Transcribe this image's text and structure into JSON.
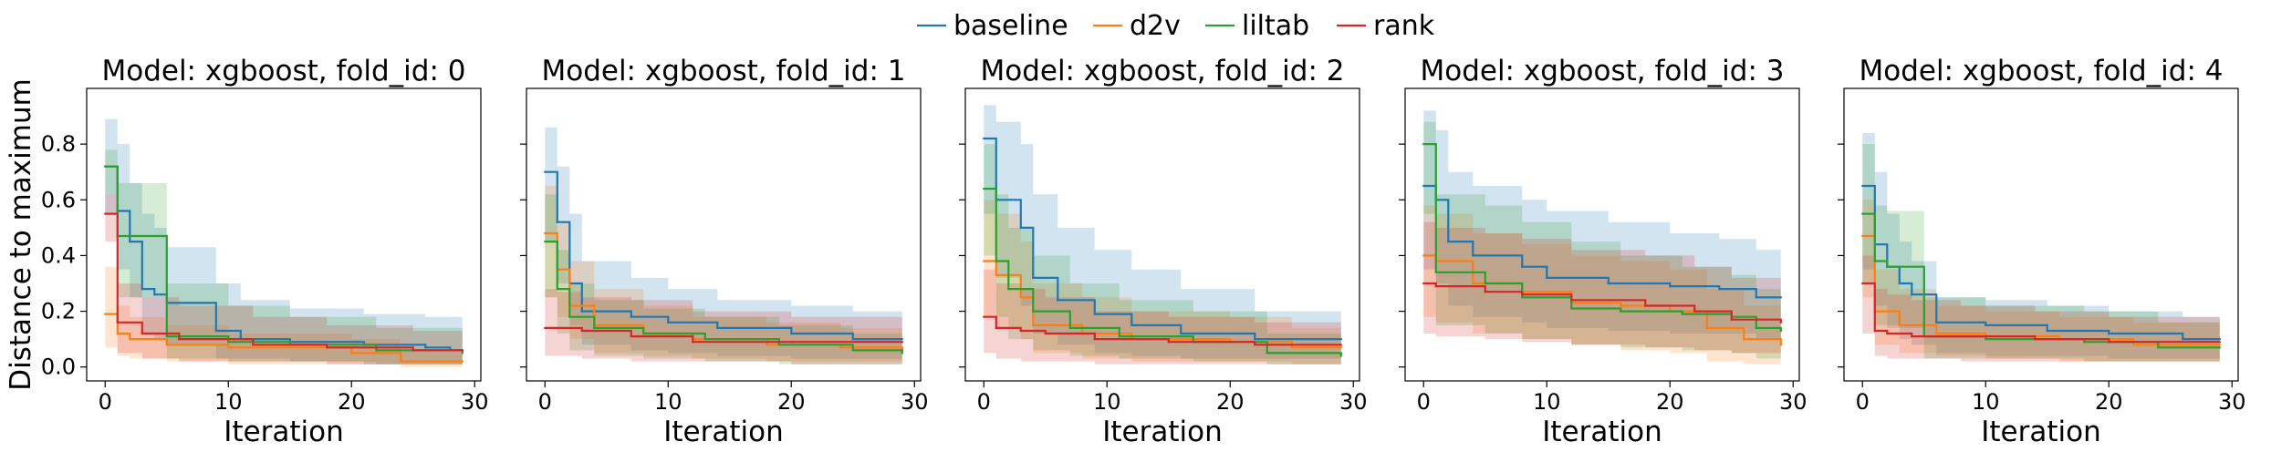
{
  "legend": {
    "placement": "top-center",
    "entries": [
      {
        "name": "baseline",
        "color": "#1f77b4"
      },
      {
        "name": "d2v",
        "color": "#ff7f0e"
      },
      {
        "name": "liltab",
        "color": "#2ca02c"
      },
      {
        "name": "rank",
        "color": "#d62728"
      }
    ]
  },
  "chart_data": [
    {
      "type": "line",
      "title": "Model: xgboost, fold_id: 0",
      "xlabel": "Iteration",
      "ylabel": "Distance to maximum",
      "xlim": [
        -1.5,
        30.5
      ],
      "ylim": [
        -0.05,
        1.0
      ],
      "xticks": [
        0,
        10,
        20,
        30
      ],
      "yticks": [
        0.0,
        0.2,
        0.4,
        0.6,
        0.8
      ],
      "ytick_labels": [
        "0.0",
        "0.2",
        "0.4",
        "0.6",
        "0.8"
      ],
      "grid": false,
      "series": [
        {
          "name": "baseline",
          "x": [
            0,
            1,
            2,
            3,
            4,
            5,
            9,
            11,
            15,
            21,
            26,
            28,
            29
          ],
          "y": [
            0.72,
            0.56,
            0.45,
            0.28,
            0.26,
            0.23,
            0.13,
            0.1,
            0.09,
            0.08,
            0.07,
            0.06,
            0.06
          ],
          "upper": [
            0.89,
            0.8,
            0.66,
            0.55,
            0.5,
            0.43,
            0.3,
            0.24,
            0.21,
            0.19,
            0.18,
            0.18,
            0.18
          ],
          "lower": [
            0.55,
            0.35,
            0.25,
            0.12,
            0.1,
            0.08,
            0.03,
            0.03,
            0.02,
            0.01,
            0.01,
            0.01,
            0.01
          ]
        },
        {
          "name": "d2v",
          "x": [
            0,
            1,
            2,
            5,
            10,
            20,
            24,
            29
          ],
          "y": [
            0.19,
            0.12,
            0.1,
            0.08,
            0.07,
            0.05,
            0.02,
            0.02
          ],
          "upper": [
            0.36,
            0.22,
            0.18,
            0.15,
            0.12,
            0.1,
            0.06,
            0.06
          ],
          "lower": [
            0.07,
            0.04,
            0.03,
            0.02,
            0.01,
            0.01,
            0.0,
            0.0
          ]
        },
        {
          "name": "liltab",
          "x": [
            0,
            1,
            5,
            10,
            15,
            22,
            29
          ],
          "y": [
            0.72,
            0.47,
            0.11,
            0.09,
            0.08,
            0.06,
            0.05
          ],
          "upper": [
            0.78,
            0.66,
            0.3,
            0.22,
            0.18,
            0.14,
            0.12
          ],
          "lower": [
            0.62,
            0.25,
            0.03,
            0.02,
            0.02,
            0.01,
            0.01
          ]
        },
        {
          "name": "rank",
          "x": [
            0,
            1,
            3,
            6,
            12,
            18,
            25,
            29
          ],
          "y": [
            0.55,
            0.16,
            0.12,
            0.1,
            0.08,
            0.07,
            0.06,
            0.06
          ],
          "upper": [
            0.62,
            0.3,
            0.25,
            0.22,
            0.18,
            0.15,
            0.13,
            0.13
          ],
          "lower": [
            0.45,
            0.05,
            0.03,
            0.02,
            0.02,
            0.01,
            0.01,
            0.01
          ]
        }
      ]
    },
    {
      "type": "line",
      "title": "Model: xgboost, fold_id: 1",
      "xlabel": "Iteration",
      "ylabel": "",
      "xlim": [
        -1.5,
        30.5
      ],
      "ylim": [
        -0.05,
        1.0
      ],
      "xticks": [
        0,
        10,
        20,
        30
      ],
      "yticks": [
        0.0,
        0.2,
        0.4,
        0.6,
        0.8
      ],
      "ytick_labels": [
        "",
        "",
        "",
        "",
        ""
      ],
      "grid": false,
      "series": [
        {
          "name": "baseline",
          "x": [
            0,
            1,
            2,
            3,
            7,
            10,
            14,
            20,
            25,
            29
          ],
          "y": [
            0.7,
            0.52,
            0.3,
            0.2,
            0.18,
            0.16,
            0.14,
            0.12,
            0.1,
            0.1
          ],
          "upper": [
            0.86,
            0.72,
            0.55,
            0.38,
            0.32,
            0.28,
            0.24,
            0.22,
            0.2,
            0.2
          ],
          "lower": [
            0.45,
            0.3,
            0.15,
            0.08,
            0.06,
            0.05,
            0.04,
            0.03,
            0.03,
            0.03
          ]
        },
        {
          "name": "d2v",
          "x": [
            0,
            1,
            2,
            4,
            8,
            12,
            18,
            24,
            29
          ],
          "y": [
            0.48,
            0.35,
            0.22,
            0.15,
            0.12,
            0.1,
            0.08,
            0.07,
            0.06
          ],
          "upper": [
            0.65,
            0.52,
            0.38,
            0.28,
            0.22,
            0.18,
            0.16,
            0.14,
            0.13
          ],
          "lower": [
            0.25,
            0.18,
            0.1,
            0.05,
            0.04,
            0.03,
            0.02,
            0.02,
            0.01
          ]
        },
        {
          "name": "liltab",
          "x": [
            0,
            1,
            2,
            4,
            8,
            13,
            19,
            25,
            29
          ],
          "y": [
            0.45,
            0.28,
            0.18,
            0.14,
            0.12,
            0.1,
            0.08,
            0.06,
            0.05
          ],
          "upper": [
            0.62,
            0.42,
            0.3,
            0.24,
            0.21,
            0.18,
            0.15,
            0.12,
            0.1
          ],
          "lower": [
            0.25,
            0.12,
            0.06,
            0.04,
            0.03,
            0.02,
            0.01,
            0.01,
            0.01
          ]
        },
        {
          "name": "rank",
          "x": [
            0,
            1,
            3,
            7,
            12,
            20,
            29
          ],
          "y": [
            0.14,
            0.14,
            0.13,
            0.11,
            0.09,
            0.09,
            0.09
          ],
          "upper": [
            0.28,
            0.27,
            0.25,
            0.24,
            0.2,
            0.18,
            0.18
          ],
          "lower": [
            0.04,
            0.04,
            0.03,
            0.02,
            0.02,
            0.01,
            0.01
          ]
        }
      ]
    },
    {
      "type": "line",
      "title": "Model: xgboost, fold_id: 2",
      "xlabel": "Iteration",
      "ylabel": "",
      "xlim": [
        -1.5,
        30.5
      ],
      "ylim": [
        -0.05,
        1.0
      ],
      "xticks": [
        0,
        10,
        20,
        30
      ],
      "yticks": [
        0.0,
        0.2,
        0.4,
        0.6,
        0.8
      ],
      "ytick_labels": [
        "",
        "",
        "",
        "",
        ""
      ],
      "grid": false,
      "series": [
        {
          "name": "baseline",
          "x": [
            0,
            1,
            3,
            4,
            6,
            9,
            12,
            16,
            22,
            29
          ],
          "y": [
            0.82,
            0.6,
            0.5,
            0.32,
            0.24,
            0.19,
            0.15,
            0.12,
            0.1,
            0.1
          ],
          "upper": [
            0.94,
            0.88,
            0.8,
            0.62,
            0.5,
            0.42,
            0.35,
            0.28,
            0.2,
            0.15
          ],
          "lower": [
            0.55,
            0.32,
            0.22,
            0.12,
            0.08,
            0.05,
            0.04,
            0.03,
            0.03,
            0.03
          ]
        },
        {
          "name": "d2v",
          "x": [
            0,
            1,
            3,
            4,
            8,
            12,
            20,
            25,
            29
          ],
          "y": [
            0.38,
            0.33,
            0.25,
            0.15,
            0.12,
            0.1,
            0.09,
            0.07,
            0.07
          ],
          "upper": [
            0.6,
            0.55,
            0.45,
            0.3,
            0.25,
            0.2,
            0.18,
            0.14,
            0.14
          ],
          "lower": [
            0.18,
            0.14,
            0.1,
            0.05,
            0.03,
            0.02,
            0.02,
            0.01,
            0.01
          ]
        },
        {
          "name": "liltab",
          "x": [
            0,
            1,
            2,
            4,
            7,
            11,
            17,
            23,
            29
          ],
          "y": [
            0.64,
            0.38,
            0.28,
            0.2,
            0.14,
            0.11,
            0.09,
            0.05,
            0.04
          ],
          "upper": [
            0.8,
            0.62,
            0.5,
            0.4,
            0.3,
            0.24,
            0.2,
            0.12,
            0.1
          ],
          "lower": [
            0.4,
            0.18,
            0.1,
            0.06,
            0.04,
            0.03,
            0.02,
            0.01,
            0.01
          ]
        },
        {
          "name": "rank",
          "x": [
            0,
            1,
            3,
            5,
            9,
            15,
            22,
            29
          ],
          "y": [
            0.18,
            0.14,
            0.13,
            0.12,
            0.1,
            0.09,
            0.08,
            0.08
          ],
          "upper": [
            0.35,
            0.3,
            0.28,
            0.25,
            0.2,
            0.18,
            0.16,
            0.16
          ],
          "lower": [
            0.05,
            0.03,
            0.02,
            0.02,
            0.01,
            0.01,
            0.01,
            0.01
          ]
        }
      ]
    },
    {
      "type": "line",
      "title": "Model: xgboost, fold_id: 3",
      "xlabel": "Iteration",
      "ylabel": "",
      "xlim": [
        -1.5,
        30.5
      ],
      "ylim": [
        -0.05,
        1.0
      ],
      "xticks": [
        0,
        10,
        20,
        30
      ],
      "yticks": [
        0.0,
        0.2,
        0.4,
        0.6,
        0.8
      ],
      "ytick_labels": [
        "",
        "",
        "",
        "",
        ""
      ],
      "grid": false,
      "series": [
        {
          "name": "baseline",
          "x": [
            0,
            1,
            2,
            4,
            8,
            10,
            15,
            20,
            24,
            27,
            29
          ],
          "y": [
            0.65,
            0.6,
            0.45,
            0.4,
            0.36,
            0.32,
            0.3,
            0.29,
            0.28,
            0.25,
            0.25
          ],
          "upper": [
            0.92,
            0.85,
            0.7,
            0.65,
            0.6,
            0.56,
            0.52,
            0.48,
            0.46,
            0.42,
            0.42
          ],
          "lower": [
            0.35,
            0.3,
            0.22,
            0.18,
            0.16,
            0.14,
            0.13,
            0.12,
            0.12,
            0.1,
            0.1
          ]
        },
        {
          "name": "d2v",
          "x": [
            0,
            1,
            4,
            8,
            12,
            16,
            20,
            23,
            26,
            29
          ],
          "y": [
            0.4,
            0.38,
            0.3,
            0.27,
            0.23,
            0.22,
            0.2,
            0.14,
            0.1,
            0.08
          ],
          "upper": [
            0.58,
            0.55,
            0.48,
            0.44,
            0.4,
            0.38,
            0.35,
            0.28,
            0.22,
            0.2
          ],
          "lower": [
            0.18,
            0.16,
            0.12,
            0.1,
            0.08,
            0.06,
            0.05,
            0.02,
            0.01,
            0.01
          ]
        },
        {
          "name": "liltab",
          "x": [
            0,
            1,
            5,
            8,
            12,
            16,
            21,
            25,
            27,
            29
          ],
          "y": [
            0.8,
            0.34,
            0.3,
            0.25,
            0.21,
            0.2,
            0.19,
            0.18,
            0.14,
            0.13
          ],
          "upper": [
            0.88,
            0.62,
            0.58,
            0.52,
            0.45,
            0.4,
            0.36,
            0.33,
            0.28,
            0.27
          ],
          "lower": [
            0.55,
            0.15,
            0.12,
            0.1,
            0.08,
            0.07,
            0.06,
            0.05,
            0.03,
            0.03
          ]
        },
        {
          "name": "rank",
          "x": [
            0,
            1,
            5,
            8,
            12,
            18,
            22,
            25,
            29
          ],
          "y": [
            0.3,
            0.29,
            0.27,
            0.26,
            0.24,
            0.22,
            0.2,
            0.17,
            0.16
          ],
          "upper": [
            0.52,
            0.5,
            0.48,
            0.46,
            0.42,
            0.4,
            0.36,
            0.32,
            0.3
          ],
          "lower": [
            0.12,
            0.11,
            0.1,
            0.09,
            0.08,
            0.07,
            0.06,
            0.05,
            0.05
          ]
        }
      ]
    },
    {
      "type": "line",
      "title": "Model: xgboost, fold_id: 4",
      "xlabel": "Iteration",
      "ylabel": "",
      "xlim": [
        -1.5,
        30.5
      ],
      "ylim": [
        -0.05,
        1.0
      ],
      "xticks": [
        0,
        10,
        20,
        30
      ],
      "yticks": [
        0.0,
        0.2,
        0.4,
        0.6,
        0.8
      ],
      "ytick_labels": [
        "",
        "",
        "",
        "",
        ""
      ],
      "grid": false,
      "series": [
        {
          "name": "baseline",
          "x": [
            0,
            1,
            2,
            3,
            4,
            6,
            10,
            15,
            20,
            26,
            29
          ],
          "y": [
            0.65,
            0.44,
            0.36,
            0.3,
            0.26,
            0.16,
            0.15,
            0.13,
            0.12,
            0.1,
            0.1
          ],
          "upper": [
            0.84,
            0.7,
            0.55,
            0.45,
            0.38,
            0.25,
            0.24,
            0.22,
            0.2,
            0.18,
            0.18
          ],
          "lower": [
            0.35,
            0.22,
            0.15,
            0.1,
            0.08,
            0.05,
            0.04,
            0.04,
            0.03,
            0.03,
            0.03
          ]
        },
        {
          "name": "d2v",
          "x": [
            0,
            1,
            3,
            6,
            10,
            16,
            22,
            29
          ],
          "y": [
            0.47,
            0.2,
            0.15,
            0.12,
            0.11,
            0.1,
            0.08,
            0.08
          ],
          "upper": [
            0.6,
            0.35,
            0.28,
            0.22,
            0.2,
            0.18,
            0.16,
            0.16
          ],
          "lower": [
            0.25,
            0.08,
            0.05,
            0.04,
            0.03,
            0.02,
            0.02,
            0.02
          ]
        },
        {
          "name": "liltab",
          "x": [
            0,
            1,
            2,
            5,
            10,
            18,
            24,
            29
          ],
          "y": [
            0.55,
            0.38,
            0.36,
            0.11,
            0.1,
            0.09,
            0.07,
            0.07
          ],
          "upper": [
            0.8,
            0.58,
            0.56,
            0.25,
            0.22,
            0.2,
            0.16,
            0.16
          ],
          "lower": [
            0.3,
            0.15,
            0.14,
            0.03,
            0.03,
            0.02,
            0.02,
            0.02
          ]
        },
        {
          "name": "rank",
          "x": [
            0,
            1,
            2,
            4,
            8,
            14,
            20,
            29
          ],
          "y": [
            0.3,
            0.13,
            0.12,
            0.11,
            0.11,
            0.1,
            0.09,
            0.09
          ],
          "upper": [
            0.4,
            0.28,
            0.26,
            0.24,
            0.22,
            0.2,
            0.18,
            0.18
          ],
          "lower": [
            0.12,
            0.04,
            0.03,
            0.03,
            0.02,
            0.02,
            0.02,
            0.02
          ]
        }
      ]
    }
  ]
}
